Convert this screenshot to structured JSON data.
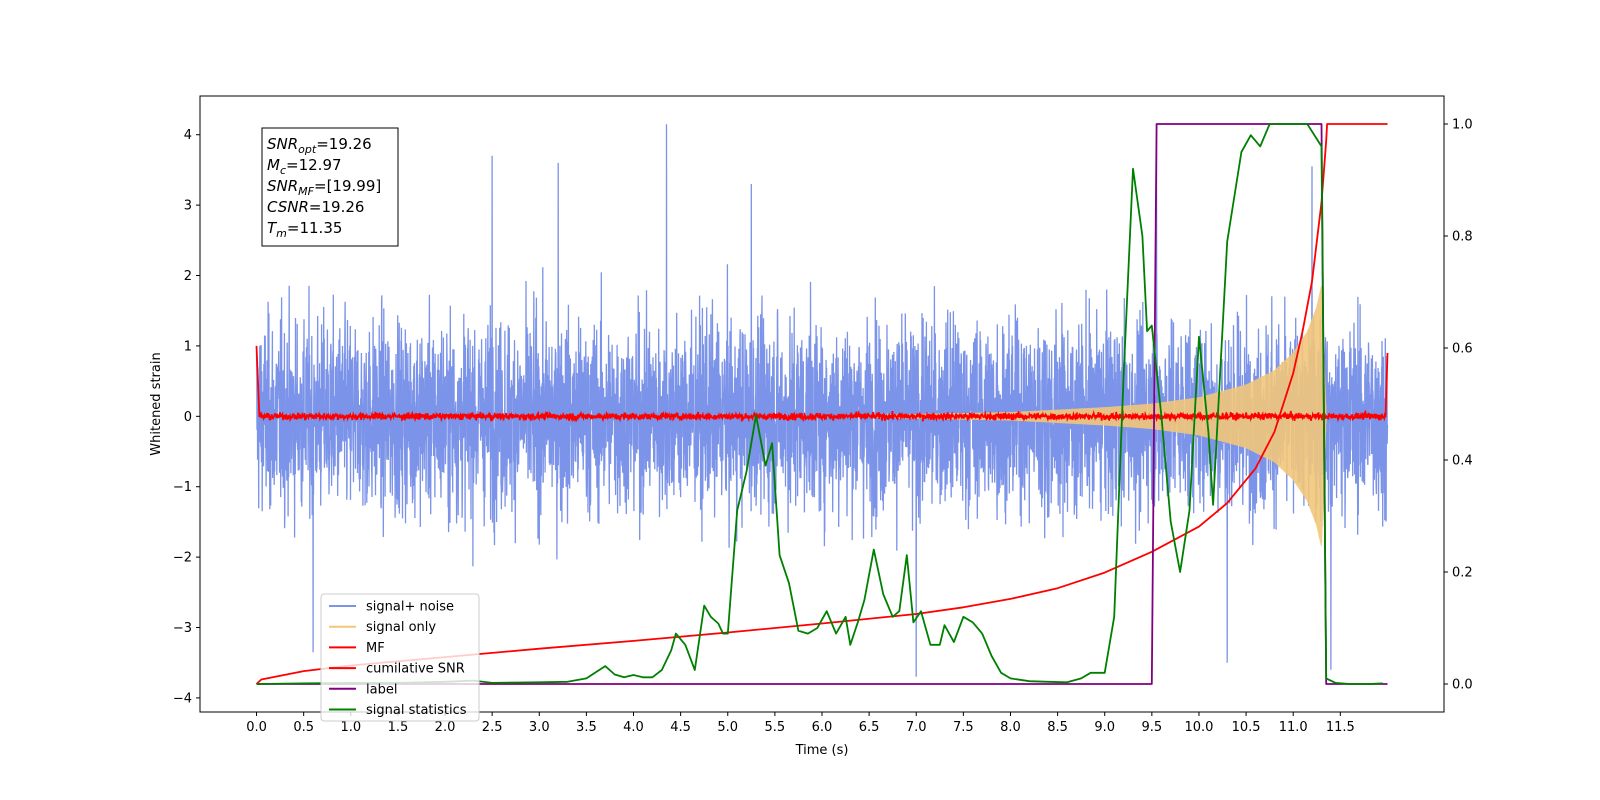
{
  "chart_data": {
    "type": "line",
    "xlabel": "Time (s)",
    "ylabel": "Whitened strain",
    "xlim": [
      -0.6,
      12.6
    ],
    "ylim": [
      -4.2,
      4.55
    ],
    "y2lim": [
      -0.05,
      1.05
    ],
    "x_ticks": [
      0.0,
      0.5,
      1.0,
      1.5,
      2.0,
      2.5,
      3.0,
      3.5,
      4.0,
      4.5,
      5.0,
      5.5,
      6.0,
      6.5,
      7.0,
      7.5,
      8.0,
      8.5,
      9.0,
      9.5,
      10.0,
      10.5,
      11.0,
      11.5
    ],
    "x_tick_labels": [
      "0.0",
      "0.5",
      "1.0",
      "1.5",
      "2.0",
      "2.5",
      "3.0",
      "3.5",
      "4.0",
      "4.5",
      "5.0",
      "5.5",
      "6.0",
      "6.5",
      "7.0",
      "7.5",
      "8.0",
      "8.5",
      "9.0",
      "9.5",
      "10.0",
      "10.5",
      "11.0",
      "11.5"
    ],
    "y_ticks": [
      -4,
      -3,
      -2,
      -1,
      0,
      1,
      2,
      3,
      4
    ],
    "y_tick_labels": [
      "−4",
      "−3",
      "−2",
      "−1",
      "0",
      "1",
      "2",
      "3",
      "4"
    ],
    "y2_ticks": [
      0.0,
      0.2,
      0.4,
      0.6,
      0.8,
      1.0
    ],
    "y2_tick_labels": [
      "0.0",
      "0.2",
      "0.4",
      "0.6",
      "0.8",
      "1.0"
    ],
    "grid": false,
    "legend_position": "lower-left",
    "annotation": {
      "lines": [
        {
          "sym": "SNR",
          "sub": "opt",
          "val": "=19.26"
        },
        {
          "sym": "M",
          "sub": "c",
          "val": "=12.97"
        },
        {
          "sym": "SNR",
          "sub": "MF",
          "val": "=[19.99]"
        },
        {
          "sym": "CSNR",
          "sub": "",
          "val": "=19.26"
        },
        {
          "sym": "T",
          "sub": "m",
          "val": "=11.35"
        }
      ]
    },
    "series": [
      {
        "name": "signal+ noise",
        "color": "#7b93e8",
        "axis": "left",
        "style": "noise",
        "x_range": [
          0.0,
          12.0
        ],
        "envelope": {
          "typical_peak": 2.4,
          "max_peak": 4.15
        },
        "notable_peaks": [
          [
            4.35,
            4.15
          ],
          [
            3.2,
            3.6
          ],
          [
            2.5,
            3.7
          ],
          [
            5.25,
            3.3
          ],
          [
            9.55,
            3.9
          ],
          [
            11.2,
            3.55
          ],
          [
            0.6,
            -3.35
          ],
          [
            7.0,
            -3.7
          ],
          [
            10.3,
            -3.5
          ],
          [
            11.4,
            -3.6
          ]
        ]
      },
      {
        "name": "signal only",
        "color": "#f2c77a",
        "axis": "left",
        "style": "chirp",
        "envelope": [
          [
            6.5,
            0.02
          ],
          [
            8.0,
            0.06
          ],
          [
            9.0,
            0.13
          ],
          [
            9.5,
            0.18
          ],
          [
            10.0,
            0.27
          ],
          [
            10.5,
            0.45
          ],
          [
            10.8,
            0.65
          ],
          [
            11.0,
            0.9
          ],
          [
            11.15,
            1.2
          ],
          [
            11.25,
            1.55
          ],
          [
            11.3,
            1.85
          ],
          [
            11.35,
            0.0
          ]
        ]
      },
      {
        "name": "MF",
        "color": "#ff0000",
        "axis": "left",
        "style": "mf",
        "values_desc": "near zero with small fluctuations",
        "points": [
          [
            0.0,
            1.0
          ],
          [
            0.03,
            0.0
          ],
          [
            11.98,
            0.0
          ],
          [
            12.0,
            0.9
          ]
        ],
        "noise_amplitude": 0.06
      },
      {
        "name": "cumilative SNR",
        "color": "#ff0000",
        "axis": "right",
        "x": [
          0.0,
          0.05,
          0.5,
          1.0,
          2.0,
          3.0,
          4.0,
          5.0,
          6.0,
          7.0,
          7.5,
          8.0,
          8.5,
          9.0,
          9.5,
          10.0,
          10.3,
          10.6,
          10.8,
          11.0,
          11.1,
          11.2,
          11.3,
          11.35,
          11.36,
          12.0
        ],
        "y": [
          0.0,
          0.008,
          0.023,
          0.033,
          0.048,
          0.063,
          0.077,
          0.092,
          0.108,
          0.125,
          0.137,
          0.152,
          0.171,
          0.199,
          0.236,
          0.281,
          0.323,
          0.385,
          0.45,
          0.555,
          0.63,
          0.72,
          0.86,
          0.97,
          1.0,
          1.0
        ]
      },
      {
        "name": "label",
        "color": "#800080",
        "axis": "right",
        "x": [
          0.0,
          9.5,
          9.55,
          11.3,
          11.35,
          12.0
        ],
        "y": [
          0.0,
          0.0,
          1.0,
          1.0,
          0.0,
          0.0
        ]
      },
      {
        "name": "signal statistics",
        "color": "#008000",
        "axis": "right",
        "x": [
          0.0,
          0.5,
          1.0,
          1.5,
          2.0,
          2.3,
          2.5,
          3.0,
          3.3,
          3.5,
          3.7,
          3.8,
          3.9,
          4.0,
          4.1,
          4.2,
          4.3,
          4.4,
          4.45,
          4.55,
          4.65,
          4.75,
          4.82,
          4.9,
          4.95,
          5.0,
          5.1,
          5.2,
          5.3,
          5.4,
          5.47,
          5.55,
          5.65,
          5.75,
          5.85,
          5.95,
          6.05,
          6.15,
          6.25,
          6.3,
          6.38,
          6.45,
          6.55,
          6.65,
          6.75,
          6.82,
          6.9,
          6.97,
          7.05,
          7.15,
          7.25,
          7.3,
          7.4,
          7.5,
          7.6,
          7.7,
          7.8,
          7.9,
          8.0,
          8.2,
          8.4,
          8.6,
          8.75,
          8.85,
          9.0,
          9.1,
          9.2,
          9.3,
          9.4,
          9.45,
          9.5,
          9.6,
          9.7,
          9.8,
          9.9,
          10.0,
          10.1,
          10.15,
          10.3,
          10.45,
          10.55,
          10.65,
          10.75,
          10.85,
          11.0,
          11.15,
          11.3,
          11.35,
          11.45,
          11.6,
          11.8,
          11.95
        ],
        "y": [
          0.0,
          0.001,
          0.002,
          0.002,
          0.004,
          0.006,
          0.002,
          0.003,
          0.004,
          0.01,
          0.032,
          0.017,
          0.012,
          0.016,
          0.012,
          0.012,
          0.025,
          0.06,
          0.09,
          0.07,
          0.025,
          0.14,
          0.12,
          0.108,
          0.09,
          0.09,
          0.31,
          0.38,
          0.48,
          0.39,
          0.43,
          0.23,
          0.18,
          0.095,
          0.09,
          0.1,
          0.13,
          0.09,
          0.12,
          0.07,
          0.11,
          0.15,
          0.24,
          0.16,
          0.12,
          0.13,
          0.23,
          0.11,
          0.13,
          0.07,
          0.07,
          0.105,
          0.075,
          0.12,
          0.11,
          0.09,
          0.05,
          0.02,
          0.01,
          0.005,
          0.004,
          0.003,
          0.01,
          0.02,
          0.02,
          0.12,
          0.55,
          0.92,
          0.8,
          0.63,
          0.64,
          0.48,
          0.29,
          0.2,
          0.31,
          0.62,
          0.45,
          0.32,
          0.79,
          0.95,
          0.98,
          0.96,
          1.0,
          1.0,
          1.0,
          1.0,
          0.96,
          0.01,
          0.002,
          0.0,
          0.0,
          0.001
        ]
      }
    ]
  }
}
